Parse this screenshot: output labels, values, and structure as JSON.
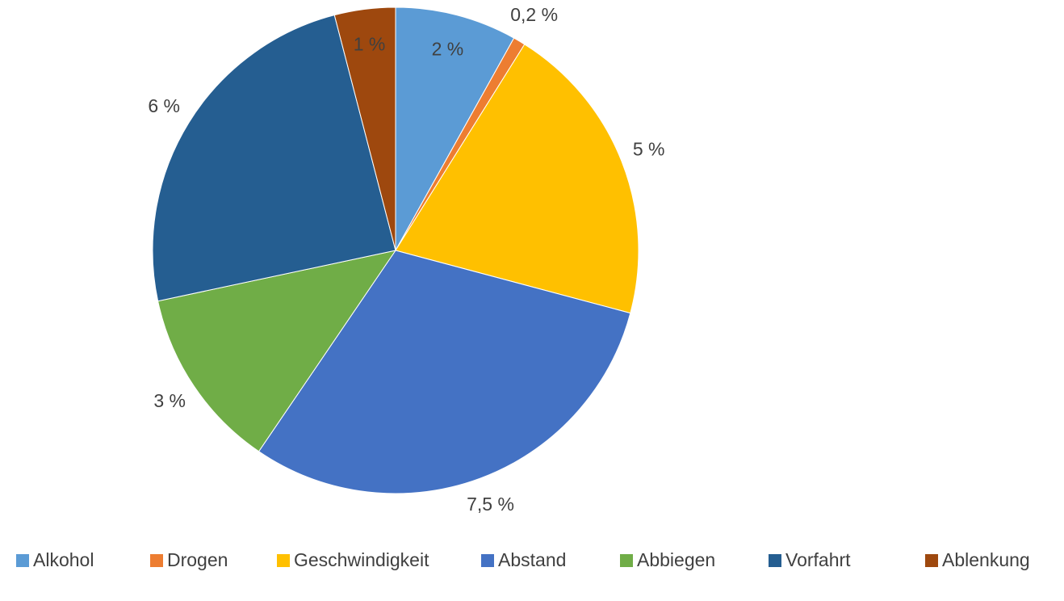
{
  "chart_data": {
    "type": "pie",
    "categories": [
      "Alkohol",
      "Drogen",
      "Geschwindigkeit",
      "Abstand",
      "Abbiegen",
      "Vorfahrt",
      "Ablenkung"
    ],
    "values": [
      2,
      0.2,
      5,
      7.5,
      3,
      6,
      1
    ],
    "value_labels": [
      "2 %",
      "0,2 %",
      "5 %",
      "7,5 %",
      "3 %",
      "6 %",
      "1 %"
    ],
    "colors": [
      "#5b9bd5",
      "#ed7d31",
      "#ffc000",
      "#4472c4",
      "#70ad47",
      "#255e91",
      "#9e480e"
    ],
    "legend": "bottom"
  }
}
